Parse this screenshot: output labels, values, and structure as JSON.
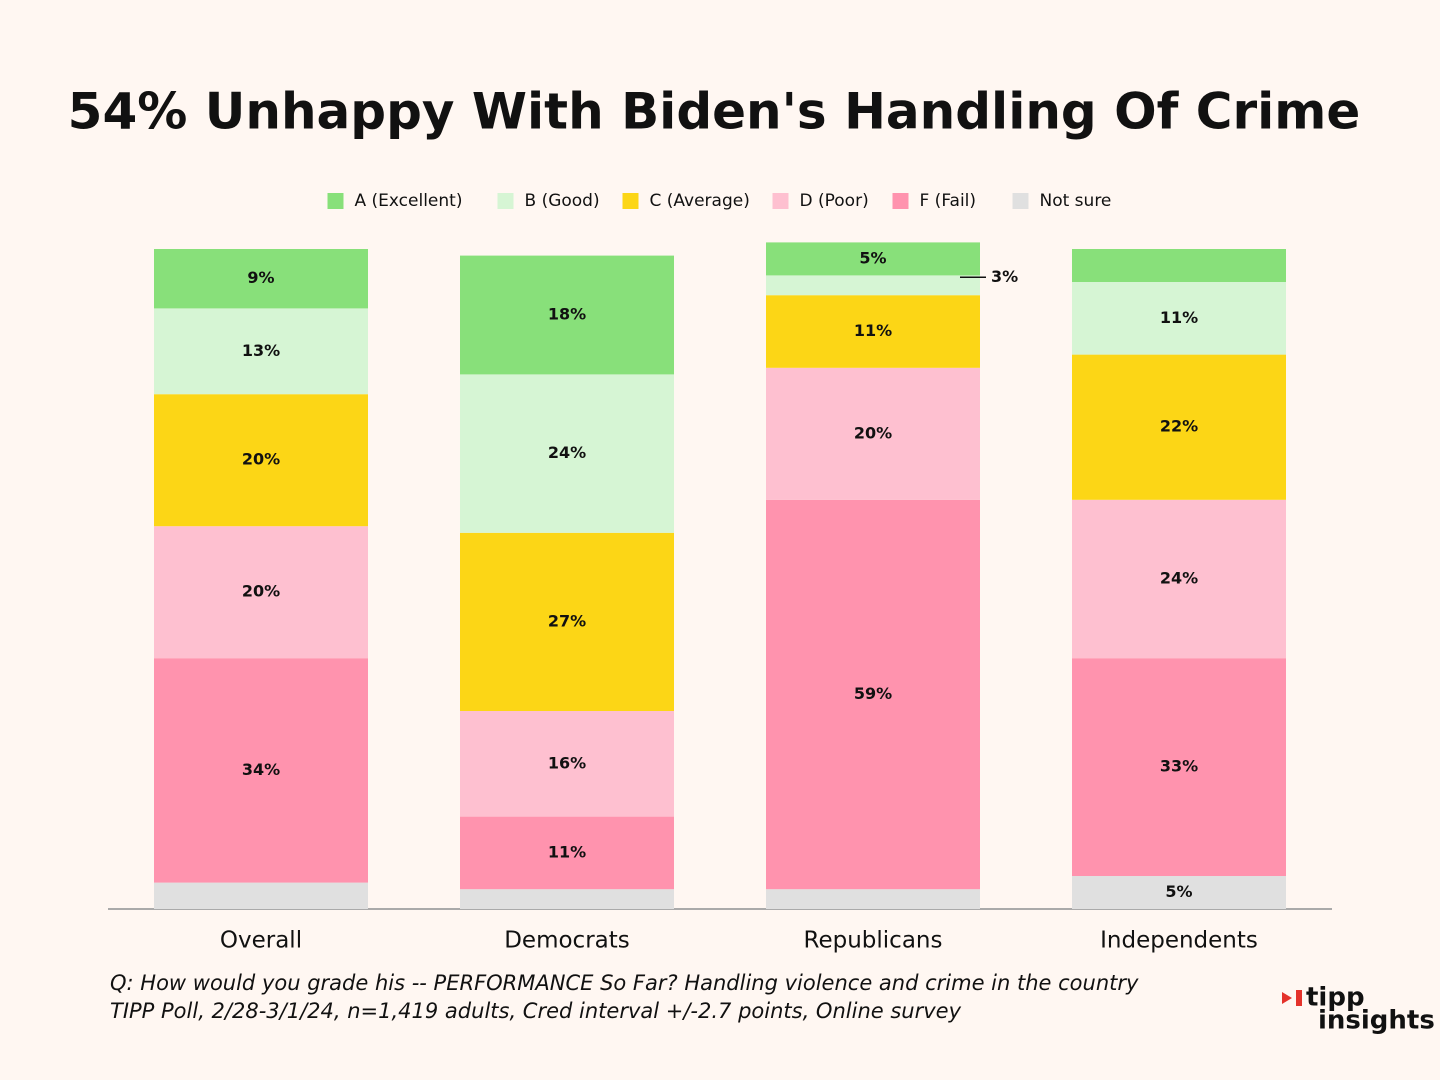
{
  "chart_data": {
    "type": "stacked_bar",
    "title": "54% Unhappy With Biden's Handling Of Crime",
    "categories": [
      "Overall",
      "Democrats",
      "Republicans",
      "Independents"
    ],
    "series": [
      {
        "name": "A (Excellent)",
        "color": "#88e07a",
        "values": [
          9,
          18,
          5,
          5
        ],
        "value_labels": [
          "9%",
          "18%",
          "5%",
          null
        ]
      },
      {
        "name": "B (Good)",
        "color": "#d6f5d4",
        "values": [
          13,
          24,
          3,
          11
        ],
        "value_labels": [
          "13%",
          "24%",
          "3%",
          "11%"
        ]
      },
      {
        "name": "C (Average)",
        "color": "#fcd616",
        "values": [
          20,
          27,
          11,
          22
        ],
        "value_labels": [
          "20%",
          "27%",
          "11%",
          "22%"
        ]
      },
      {
        "name": "D (Poor)",
        "color": "#fec0d0",
        "values": [
          20,
          16,
          20,
          24
        ],
        "value_labels": [
          "20%",
          "16%",
          "20%",
          "24%"
        ]
      },
      {
        "name": "F (Fail)",
        "color": "#ff93ae",
        "values": [
          34,
          11,
          59,
          33
        ],
        "value_labels": [
          "34%",
          "11%",
          "59%",
          "33%"
        ]
      },
      {
        "name": "Not sure",
        "color": "#e0e0e0",
        "values": [
          4,
          3,
          3,
          5
        ],
        "value_labels": [
          null,
          null,
          null,
          "5%"
        ]
      }
    ],
    "ylim": [
      0,
      100
    ],
    "legend": "top",
    "notes": [
      "Q:  How would you grade his -- PERFORMANCE So Far? Handling violence and crime in the country",
      "TIPP Poll, 2/28-3/1/24, n=1,419 adults, Cred interval +/-2.7 points, Online survey"
    ],
    "logo": [
      "tipp",
      "insights"
    ]
  }
}
